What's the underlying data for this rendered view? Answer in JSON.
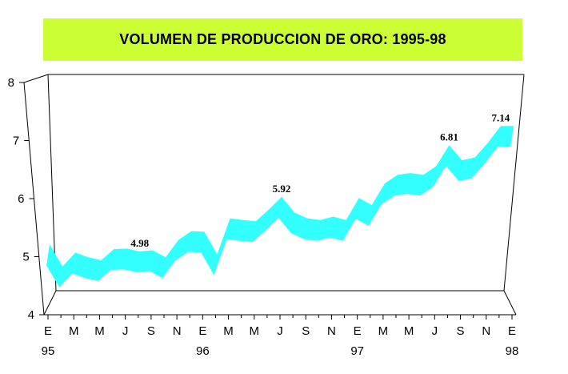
{
  "chart_data": {
    "type": "area",
    "title": "VOLUMEN DE PRODUCCION DE ORO: 1995-98",
    "xlabel": "",
    "ylabel": "",
    "ylim": [
      4,
      8
    ],
    "y_ticks": [
      "4",
      "5",
      "6",
      "7",
      "8"
    ],
    "x_tick_labels": [
      "E",
      "M",
      "M",
      "J",
      "S",
      "N",
      "E",
      "M",
      "M",
      "J",
      "S",
      "N",
      "E",
      "M",
      "M",
      "J",
      "S",
      "N",
      "E"
    ],
    "year_labels": [
      {
        "label": "95",
        "month_index": 0
      },
      {
        "label": "96",
        "month_index": 12
      },
      {
        "label": "97",
        "month_index": 24
      },
      {
        "label": "98",
        "month_index": 36
      }
    ],
    "x": [
      "E-95",
      "F-95",
      "M-95",
      "A-95",
      "M-95",
      "J-95",
      "J-95",
      "A-95",
      "S-95",
      "O-95",
      "N-95",
      "D-95",
      "E-96",
      "F-96",
      "M-96",
      "A-96",
      "M-96",
      "J-96",
      "J-96",
      "A-96",
      "S-96",
      "O-96",
      "N-96",
      "D-96",
      "E-97",
      "F-97",
      "M-97",
      "A-97",
      "M-97",
      "J-97",
      "J-97",
      "A-97",
      "S-97",
      "O-97",
      "N-97",
      "D-97",
      "E-98"
    ],
    "values": [
      5.1,
      4.72,
      4.96,
      4.88,
      4.83,
      5.02,
      5.03,
      4.98,
      5.0,
      4.88,
      5.18,
      5.33,
      5.32,
      4.93,
      5.55,
      5.52,
      5.5,
      5.7,
      5.92,
      5.65,
      5.55,
      5.52,
      5.58,
      5.52,
      5.9,
      5.78,
      6.15,
      6.3,
      6.33,
      6.3,
      6.45,
      6.81,
      6.55,
      6.6,
      6.85,
      7.14,
      7.14
    ],
    "data_labels": [
      {
        "index": 7,
        "text": "4.98"
      },
      {
        "index": 18,
        "text": "5.92"
      },
      {
        "index": 31,
        "text": "6.81"
      },
      {
        "index": 35,
        "text": "7.14"
      }
    ],
    "ribbon_color": "#33ffff",
    "title_background": "#ccff33",
    "legend": "none"
  }
}
